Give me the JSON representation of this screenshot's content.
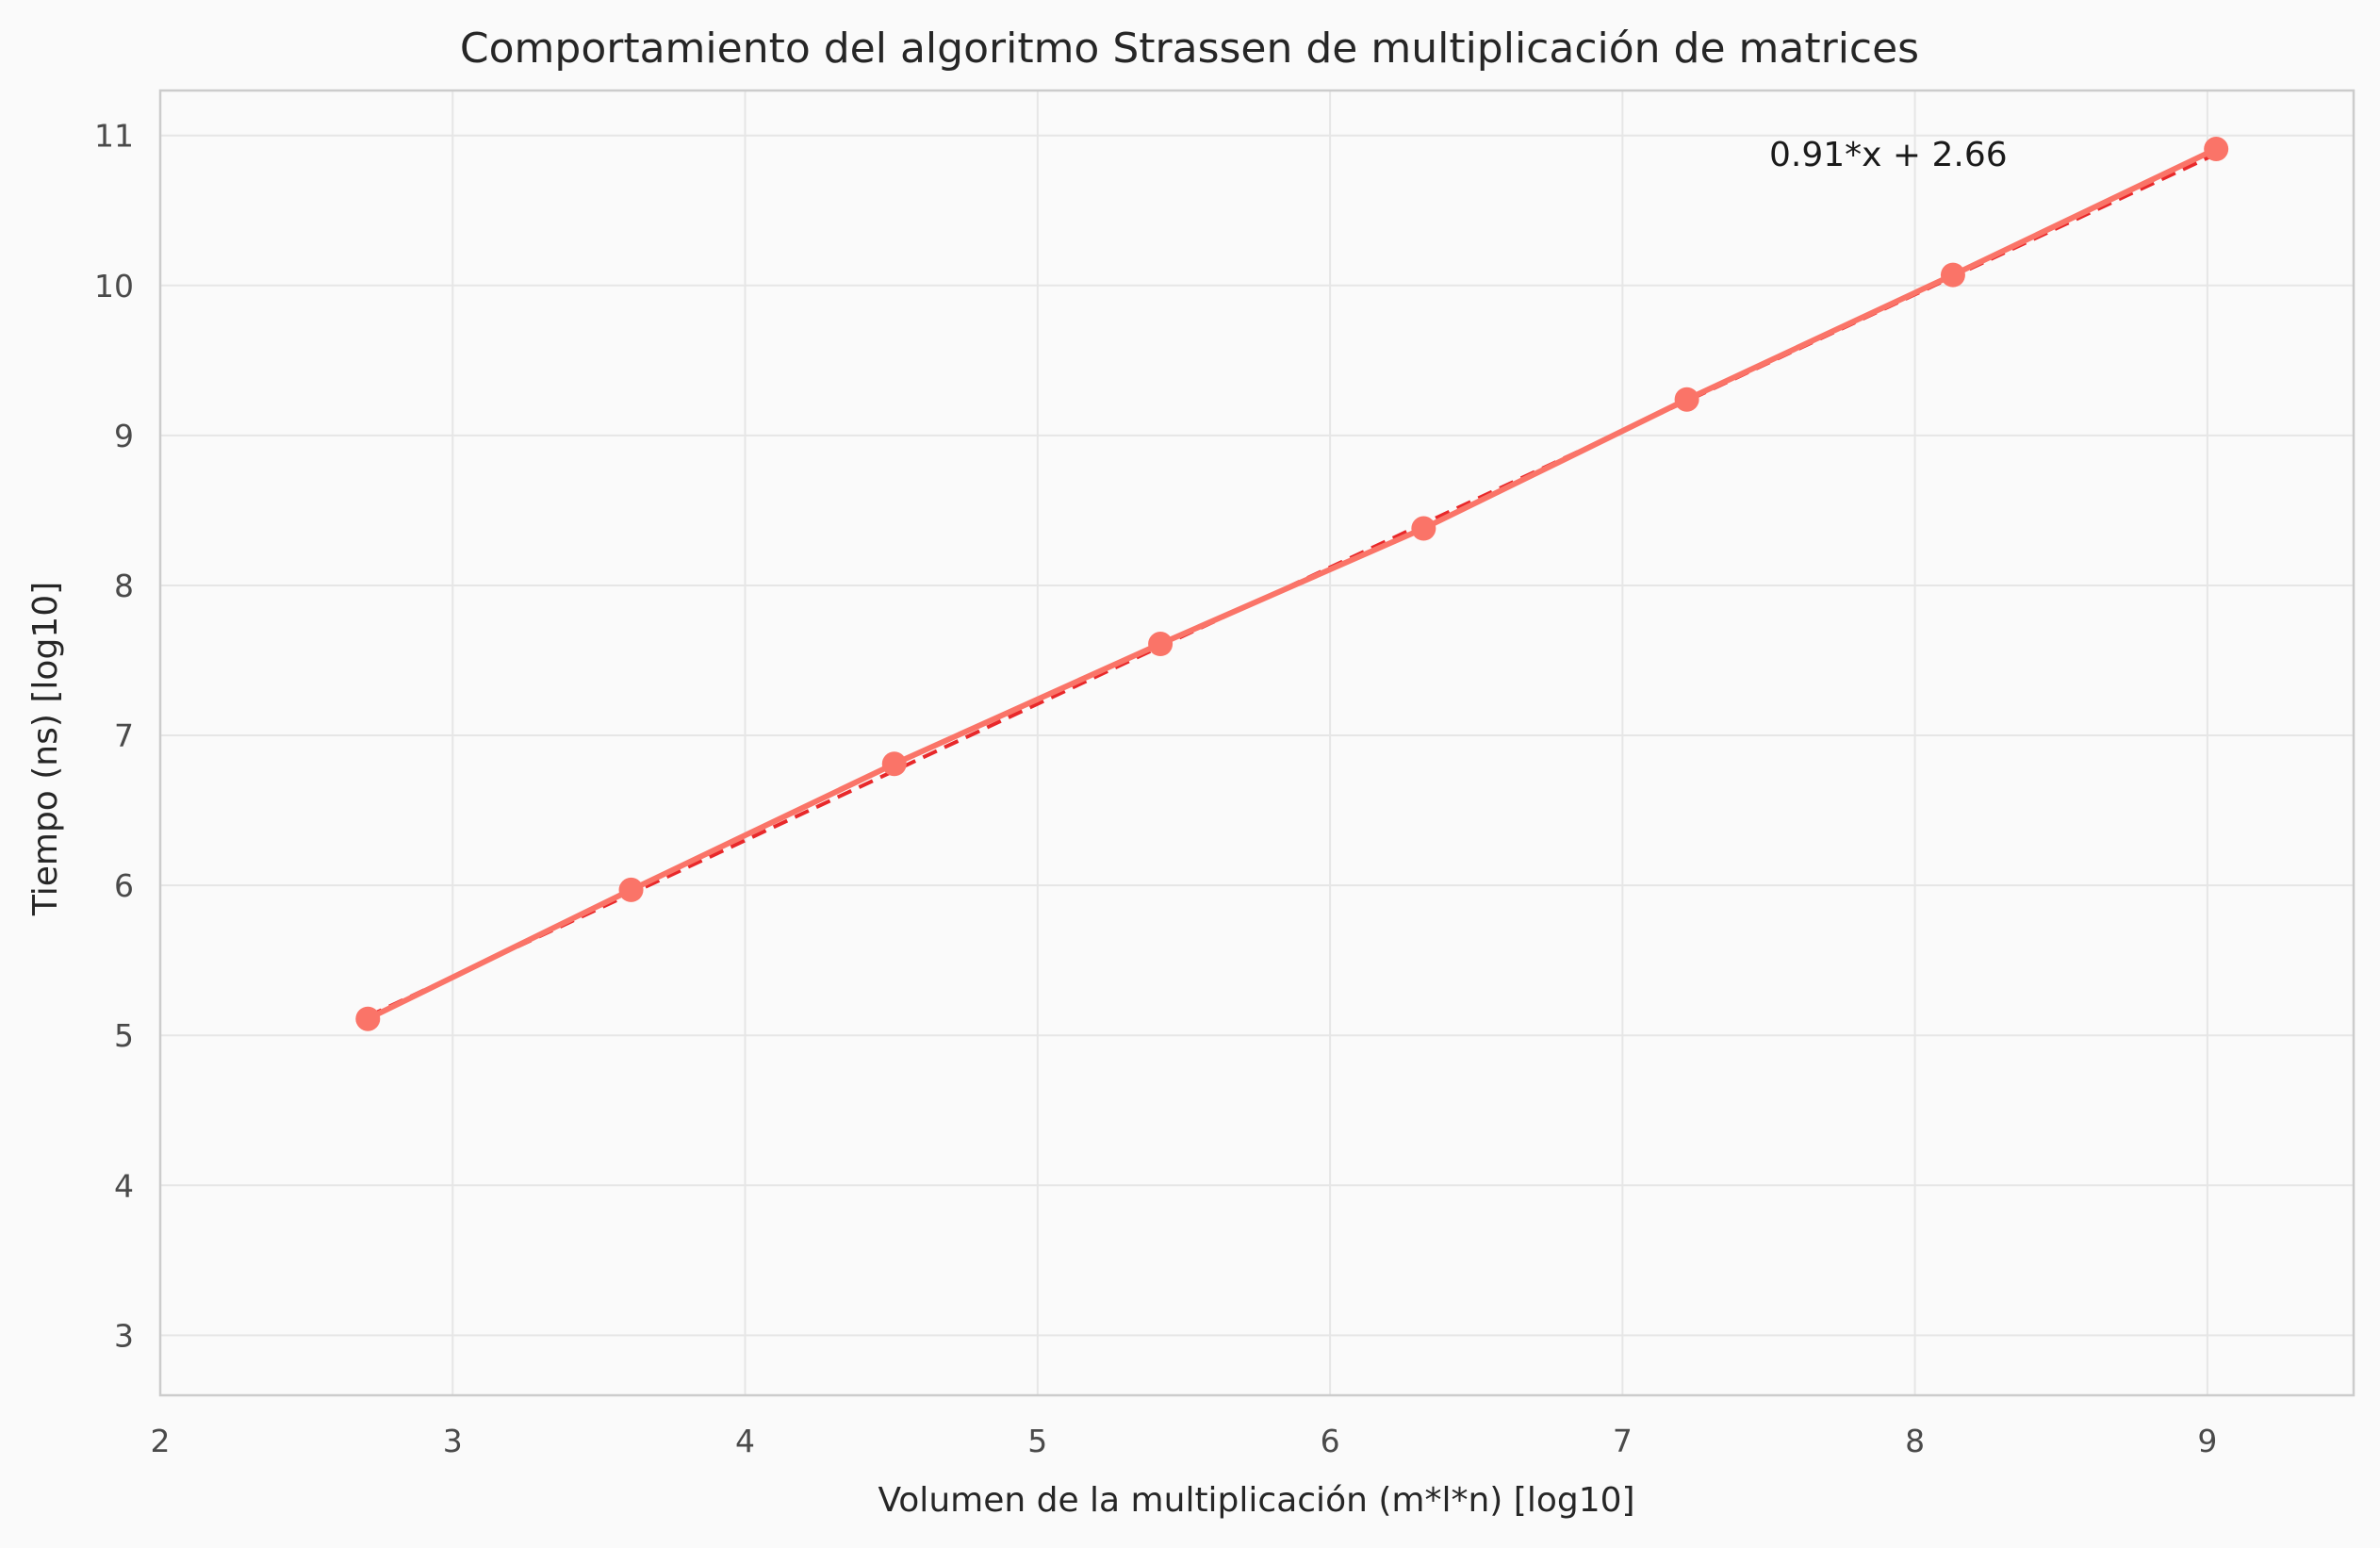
{
  "chart_data": {
    "type": "line",
    "title": "Comportamiento del algoritmo Strassen de multiplicación de matrices",
    "xlabel": "Volumen de la multiplicación (m*l*n) [log10]",
    "ylabel": "Tiempo (ns) [log10]",
    "xlim": [
      2,
      9.5
    ],
    "ylim": [
      2.6,
      11.3
    ],
    "xticks": [
      2,
      3,
      4,
      5,
      6,
      7,
      8,
      9
    ],
    "yticks": [
      3,
      4,
      5,
      6,
      7,
      8,
      9,
      10,
      11
    ],
    "grid": true,
    "annotation": "0.91*x + 2.66",
    "fit": {
      "slope": 0.91,
      "intercept": 2.66,
      "color": "#e8282a"
    },
    "series": [
      {
        "color": "#fa7468",
        "x": [
          2.71,
          3.61,
          4.51,
          5.42,
          6.32,
          7.22,
          8.13,
          9.03
        ],
        "y": [
          5.11,
          5.97,
          6.81,
          7.61,
          8.38,
          9.24,
          10.07,
          10.91
        ]
      }
    ],
    "colors": {
      "background": "#fafafa",
      "grid": "#e6e6e6",
      "spine": "#cccccc"
    }
  }
}
